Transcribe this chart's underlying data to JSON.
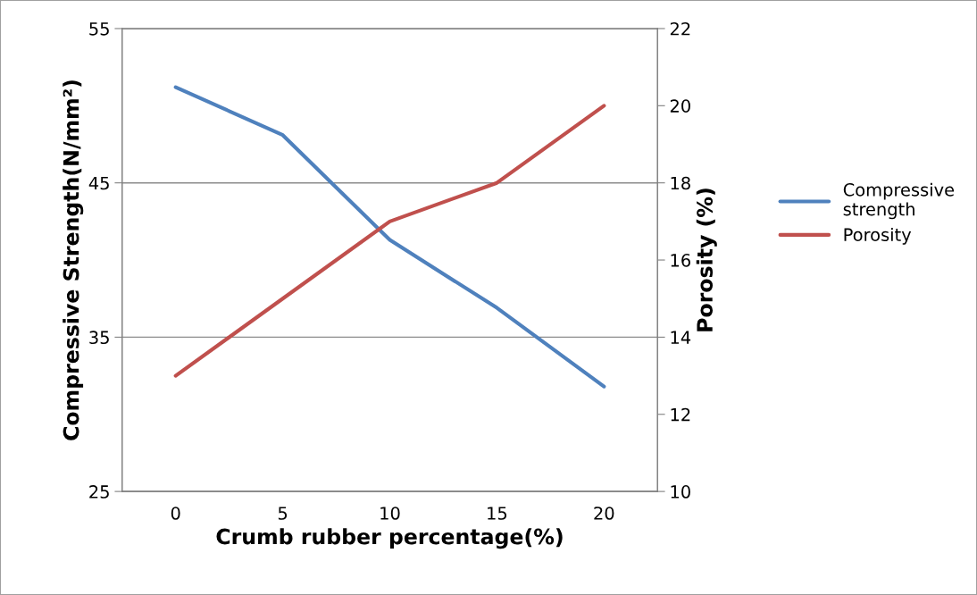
{
  "chart_data": {
    "type": "line",
    "xlabel": "Crumb rubber percentage(%)",
    "ylabel": "Compressive Strength(N/mm²)",
    "y2label": "Porosity (%)",
    "categories": [
      "0",
      "5",
      "10",
      "15",
      "20"
    ],
    "series": [
      {
        "name": "Compressive strength",
        "color": "#4f81bd",
        "values": [
          51.2,
          48.1,
          41.3,
          36.9,
          31.8
        ]
      },
      {
        "name": "Porosity",
        "color": "#c0504d",
        "values": [
          13.0,
          15.0,
          17.0,
          18.0,
          20.0
        ],
        "axis": "y2"
      }
    ],
    "ylim": [
      25,
      55
    ],
    "yticks": [
      25,
      35,
      45,
      55
    ],
    "y2lim": [
      10,
      22
    ],
    "y2ticks": [
      10,
      12,
      14,
      16,
      18,
      20,
      22
    ],
    "grid": "y",
    "legend": "right",
    "marker": "none",
    "line_style": "solid"
  }
}
